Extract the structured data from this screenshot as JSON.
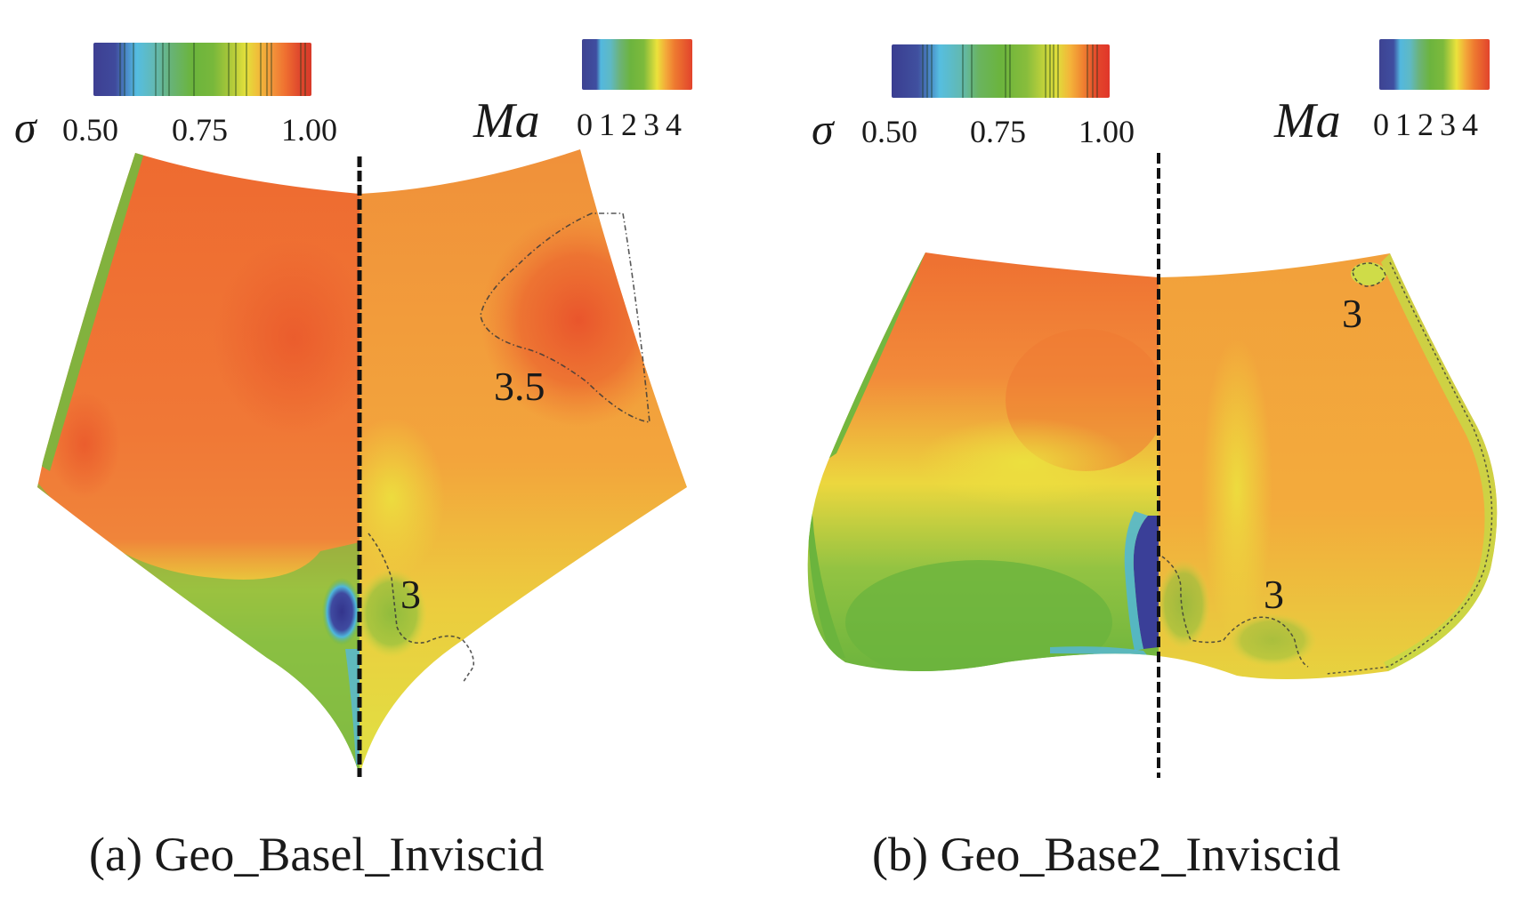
{
  "panels": [
    {
      "caption": "(a) Geo_Basel_Inviscid",
      "sigma_legend": {
        "symbol": "σ",
        "ticks": [
          "0.50",
          "0.75",
          "1.00"
        ]
      },
      "ma_legend": {
        "symbol": "Ma",
        "ticks": "0 1 2 3 4"
      },
      "contour_labels": [
        "3.5",
        "3"
      ]
    },
    {
      "caption": "(b) Geo_Base2_Inviscid",
      "sigma_legend": {
        "symbol": "σ",
        "ticks": [
          "0.50",
          "0.75",
          "1.00"
        ]
      },
      "ma_legend": {
        "symbol": "Ma",
        "ticks": "0 1 2 3 4"
      },
      "contour_labels": [
        "3",
        "3"
      ]
    }
  ],
  "colors": {
    "deep_blue": "#3b3f96",
    "cyan": "#4fb8dc",
    "green": "#6db33f",
    "yellow": "#e8e23c",
    "orange": "#f08a33",
    "red": "#e2402e",
    "divider": "#111111"
  }
}
